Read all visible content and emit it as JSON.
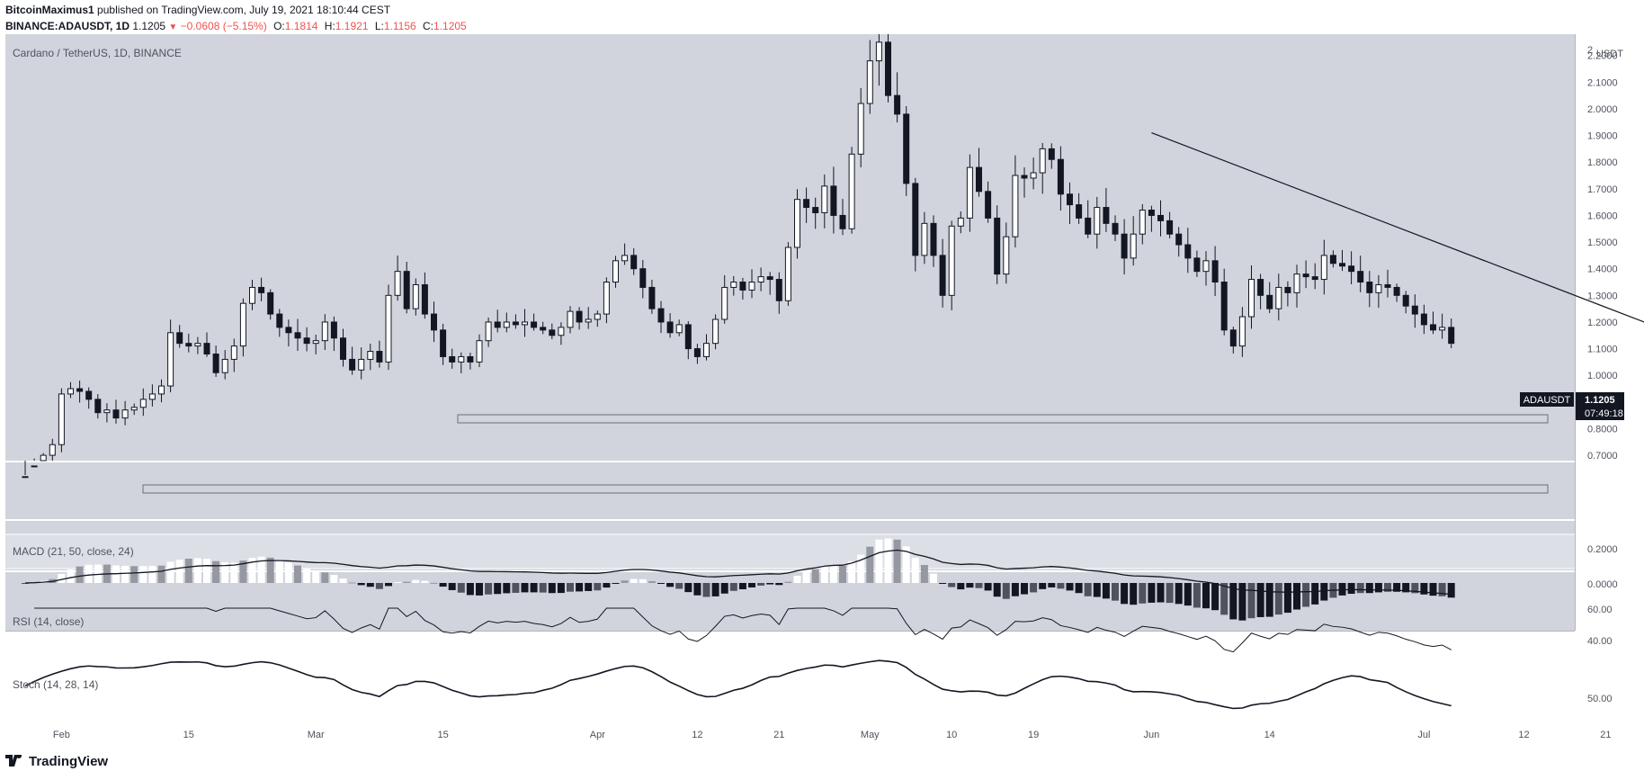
{
  "header": {
    "publisher": "BitcoinMaximus1",
    "published_text": "published on TradingView.com, July 19, 2021 18:10:44 CEST",
    "symbol": "BINANCE:ADAUSDT, 1D",
    "last": "1.1205",
    "change": "−0.0608 (−5.15%)",
    "o_label": "O:",
    "o": "1.1814",
    "h_label": "H:",
    "h": "1.1921",
    "l_label": "L:",
    "l": "1.1156",
    "c_label": "C:",
    "c": "1.1205"
  },
  "chart_title": "Cardano / TetherUS, 1D, BINANCE",
  "price_axis_unit": "USDT",
  "price_ticks": [
    "0.7000",
    "0.8000",
    "0.9000",
    "1.0000",
    "1.1000",
    "1.2000",
    "1.3000",
    "1.4000",
    "1.5000",
    "1.6000",
    "1.7000",
    "1.8000",
    "1.9000",
    "2.0000",
    "2.1000",
    "2.2000"
  ],
  "price_top_partial": "2",
  "price_label": {
    "symbol": "ADAUSDT",
    "price": "1.1205",
    "countdown": "07:49:18"
  },
  "macd": {
    "label": "MACD (21, 50, close, 24)",
    "ticks": [
      "0.2000",
      "0.0000"
    ]
  },
  "rsi": {
    "label": "RSI (14, close)",
    "ticks": [
      "60.00",
      "40.00"
    ]
  },
  "stoch": {
    "label": "Stoch (14, 28, 14)",
    "ticks": [
      "50.00"
    ]
  },
  "time_labels": [
    "Feb",
    "15",
    "Mar",
    "15",
    "Apr",
    "12",
    "21",
    "May",
    "10",
    "19",
    "Jun",
    "14",
    "Jul",
    "12",
    "21"
  ],
  "footer": {
    "logo_text": "TradingView"
  },
  "colors": {
    "pane_bg": "#d1d4dc",
    "rsi_band": "#dcdfe5",
    "ink": "#131722",
    "down": "#ef5350"
  },
  "chart_data": {
    "type": "candlestick",
    "title": "Cardano / TetherUS, 1D, BINANCE",
    "ylabel": "USDT",
    "ylim": [
      0.68,
      2.28
    ],
    "x_start": "2021-01-28",
    "x_labels": [
      {
        "date": "2021-02-01",
        "text": "Feb"
      },
      {
        "date": "2021-02-15",
        "text": "15"
      },
      {
        "date": "2021-03-01",
        "text": "Mar"
      },
      {
        "date": "2021-03-15",
        "text": "15"
      },
      {
        "date": "2021-04-01",
        "text": "Apr"
      },
      {
        "date": "2021-04-12",
        "text": "12"
      },
      {
        "date": "2021-04-21",
        "text": "21"
      },
      {
        "date": "2021-05-01",
        "text": "May"
      },
      {
        "date": "2021-05-10",
        "text": "10"
      },
      {
        "date": "2021-05-19",
        "text": "19"
      },
      {
        "date": "2021-06-01",
        "text": "Jun"
      },
      {
        "date": "2021-06-14",
        "text": "14"
      },
      {
        "date": "2021-07-01",
        "text": "Jul"
      },
      {
        "date": "2021-07-12",
        "text": "12"
      },
      {
        "date": "2021-07-21",
        "text": "21"
      }
    ],
    "close": [
      0.62,
      0.66,
      0.7,
      0.74,
      0.93,
      0.95,
      0.94,
      0.91,
      0.86,
      0.87,
      0.84,
      0.87,
      0.88,
      0.91,
      0.93,
      0.96,
      1.16,
      1.12,
      1.11,
      1.12,
      1.08,
      1.01,
      1.06,
      1.11,
      1.27,
      1.33,
      1.31,
      1.23,
      1.18,
      1.16,
      1.14,
      1.12,
      1.13,
      1.2,
      1.14,
      1.06,
      1.02,
      1.06,
      1.09,
      1.05,
      1.3,
      1.39,
      1.25,
      1.34,
      1.23,
      1.17,
      1.07,
      1.05,
      1.07,
      1.05,
      1.13,
      1.2,
      1.18,
      1.2,
      1.19,
      1.2,
      1.18,
      1.17,
      1.15,
      1.18,
      1.24,
      1.2,
      1.21,
      1.23,
      1.35,
      1.43,
      1.45,
      1.4,
      1.33,
      1.25,
      1.2,
      1.16,
      1.19,
      1.1,
      1.07,
      1.12,
      1.21,
      1.33,
      1.35,
      1.32,
      1.35,
      1.37,
      1.36,
      1.28,
      1.48,
      1.66,
      1.63,
      1.61,
      1.71,
      1.6,
      1.55,
      1.83,
      2.02,
      2.18,
      2.25,
      2.05,
      1.98,
      1.72,
      1.45,
      1.57,
      1.45,
      1.3,
      1.56,
      1.59,
      1.78,
      1.69,
      1.59,
      1.38,
      1.52,
      1.75,
      1.74,
      1.76,
      1.85,
      1.81,
      1.68,
      1.64,
      1.59,
      1.53,
      1.63,
      1.57,
      1.53,
      1.44,
      1.53,
      1.62,
      1.6,
      1.58,
      1.53,
      1.49,
      1.44,
      1.39,
      1.43,
      1.35,
      1.17,
      1.11,
      1.22,
      1.36,
      1.3,
      1.25,
      1.33,
      1.31,
      1.38,
      1.37,
      1.36,
      1.45,
      1.42,
      1.41,
      1.39,
      1.35,
      1.31,
      1.34,
      1.33,
      1.3,
      1.26,
      1.23,
      1.19,
      1.17,
      1.18,
      1.12
    ],
    "trendline": [
      {
        "date": "2021-06-01",
        "price": 1.91
      },
      {
        "date": "2021-07-26",
        "price": 1.19
      }
    ],
    "support_zones": [
      [
        0.81,
        0.83
      ],
      [
        1.04,
        1.07
      ]
    ],
    "macd_approx": "line peaks ~0.24 in early March and mid May, then declines below 0 from June; histogram positive Feb–mid Mar and around mid May, negative otherwise",
    "rsi_approx": "oscillates mostly between 35 and 60, ending near 35",
    "stoch_approx": "highs near 78 in mid Feb and mid May, low near 20 late June, ending near 25"
  }
}
